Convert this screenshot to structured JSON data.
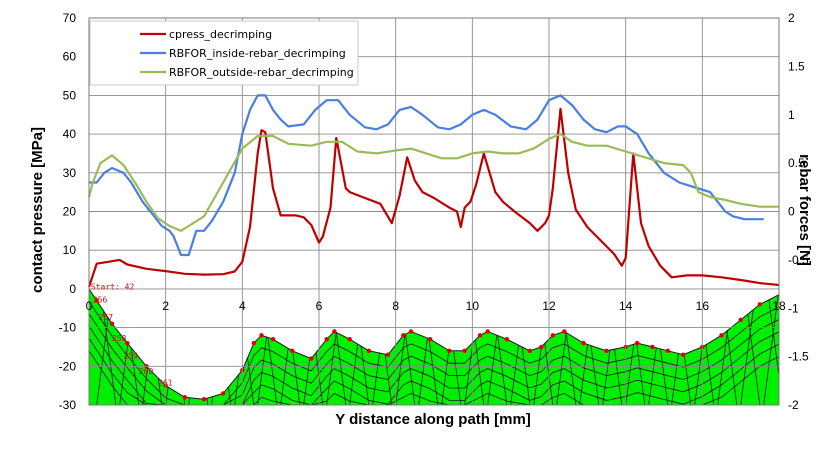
{
  "chart_data": {
    "type": "line",
    "xlabel": "Y distance along path [mm]",
    "ylabel": "contact pressure [MPa]",
    "y2label": "rebar forces [N]",
    "xlim": [
      0,
      18
    ],
    "ylim": [
      -30,
      70
    ],
    "y2lim": [
      -2,
      2
    ],
    "xticks": [
      "0",
      "2",
      "4",
      "6",
      "8",
      "10",
      "12",
      "14",
      "16",
      "18"
    ],
    "yticks": [
      "70",
      "60",
      "50",
      "40",
      "30",
      "20",
      "10",
      "0",
      "-10",
      "-20",
      "-30"
    ],
    "y2ticks": [
      "2",
      "1.5",
      "1",
      "0.5",
      "0",
      "-0.5",
      "-1",
      "-1.5",
      "-2"
    ],
    "grid": true,
    "legend_position": "top-left",
    "series": [
      {
        "name": "cpress_decrimping",
        "color": "#c00000",
        "axis": "left",
        "points": [
          [
            0,
            0.5
          ],
          [
            0.2,
            6.5
          ],
          [
            0.5,
            7.0
          ],
          [
            0.8,
            7.5
          ],
          [
            1.0,
            6.3
          ],
          [
            1.5,
            5.2
          ],
          [
            2.0,
            4.6
          ],
          [
            2.5,
            3.9
          ],
          [
            3.0,
            3.7
          ],
          [
            3.5,
            3.8
          ],
          [
            3.8,
            4.5
          ],
          [
            4.0,
            7.0
          ],
          [
            4.2,
            16
          ],
          [
            4.4,
            35
          ],
          [
            4.5,
            41
          ],
          [
            4.6,
            40.5
          ],
          [
            4.8,
            26
          ],
          [
            5.0,
            19
          ],
          [
            5.4,
            19
          ],
          [
            5.6,
            18.5
          ],
          [
            5.8,
            16.5
          ],
          [
            6.0,
            12
          ],
          [
            6.1,
            13.5
          ],
          [
            6.3,
            21
          ],
          [
            6.45,
            39
          ],
          [
            6.7,
            26
          ],
          [
            6.8,
            25
          ],
          [
            7.2,
            23.5
          ],
          [
            7.6,
            22
          ],
          [
            7.9,
            17
          ],
          [
            8.1,
            24
          ],
          [
            8.3,
            34
          ],
          [
            8.5,
            28
          ],
          [
            8.7,
            25
          ],
          [
            9.0,
            23.5
          ],
          [
            9.4,
            21
          ],
          [
            9.6,
            20
          ],
          [
            9.7,
            16
          ],
          [
            9.8,
            21
          ],
          [
            9.95,
            22.5
          ],
          [
            10.1,
            27
          ],
          [
            10.3,
            35
          ],
          [
            10.6,
            25
          ],
          [
            10.8,
            22.5
          ],
          [
            11.1,
            20
          ],
          [
            11.5,
            17
          ],
          [
            11.7,
            15
          ],
          [
            11.9,
            17
          ],
          [
            12.0,
            19
          ],
          [
            12.1,
            26
          ],
          [
            12.3,
            46.5
          ],
          [
            12.5,
            30
          ],
          [
            12.7,
            20.5
          ],
          [
            13.0,
            16
          ],
          [
            13.4,
            12
          ],
          [
            13.7,
            9
          ],
          [
            13.9,
            6
          ],
          [
            14.0,
            8
          ],
          [
            14.2,
            35
          ],
          [
            14.4,
            17
          ],
          [
            14.6,
            11
          ],
          [
            14.9,
            6
          ],
          [
            15.2,
            3
          ],
          [
            15.6,
            3.5
          ],
          [
            16.0,
            3.5
          ],
          [
            16.5,
            3.0
          ],
          [
            17.0,
            2.3
          ],
          [
            17.5,
            1.5
          ],
          [
            18.0,
            1.0
          ]
        ]
      },
      {
        "name": "RBFOR_inside-rebar_decrimping",
        "color": "#4a7ee0",
        "axis": "right",
        "points": [
          [
            0,
            0.3
          ],
          [
            0.2,
            0.3
          ],
          [
            0.4,
            0.4
          ],
          [
            0.6,
            0.45
          ],
          [
            0.9,
            0.4
          ],
          [
            1.1,
            0.3
          ],
          [
            1.4,
            0.1
          ],
          [
            1.7,
            -0.05
          ],
          [
            1.9,
            -0.15
          ],
          [
            2.1,
            -0.2
          ],
          [
            2.2,
            -0.25
          ],
          [
            2.3,
            -0.35
          ],
          [
            2.4,
            -0.45
          ],
          [
            2.6,
            -0.45
          ],
          [
            2.8,
            -0.2
          ],
          [
            3.0,
            -0.2
          ],
          [
            3.2,
            -0.1
          ],
          [
            3.5,
            0.1
          ],
          [
            3.8,
            0.4
          ],
          [
            4.0,
            0.8
          ],
          [
            4.2,
            1.05
          ],
          [
            4.4,
            1.2
          ],
          [
            4.6,
            1.2
          ],
          [
            4.8,
            1.05
          ],
          [
            5.0,
            0.95
          ],
          [
            5.2,
            0.88
          ],
          [
            5.6,
            0.9
          ],
          [
            5.9,
            1.05
          ],
          [
            6.2,
            1.15
          ],
          [
            6.5,
            1.15
          ],
          [
            6.8,
            1.0
          ],
          [
            7.2,
            0.87
          ],
          [
            7.5,
            0.85
          ],
          [
            7.8,
            0.9
          ],
          [
            8.1,
            1.05
          ],
          [
            8.4,
            1.08
          ],
          [
            8.7,
            1.0
          ],
          [
            9.1,
            0.87
          ],
          [
            9.4,
            0.85
          ],
          [
            9.7,
            0.9
          ],
          [
            10.0,
            1.0
          ],
          [
            10.3,
            1.05
          ],
          [
            10.6,
            1.0
          ],
          [
            11.0,
            0.88
          ],
          [
            11.4,
            0.85
          ],
          [
            11.7,
            0.95
          ],
          [
            12.0,
            1.15
          ],
          [
            12.3,
            1.2
          ],
          [
            12.6,
            1.1
          ],
          [
            12.9,
            0.95
          ],
          [
            13.2,
            0.85
          ],
          [
            13.5,
            0.82
          ],
          [
            13.8,
            0.88
          ],
          [
            14.0,
            0.88
          ],
          [
            14.3,
            0.8
          ],
          [
            14.6,
            0.6
          ],
          [
            15.0,
            0.4
          ],
          [
            15.4,
            0.3
          ],
          [
            15.8,
            0.25
          ],
          [
            16.2,
            0.2
          ],
          [
            16.4,
            0.1
          ],
          [
            16.6,
            0.0
          ],
          [
            16.8,
            -0.05
          ],
          [
            17.1,
            -0.08
          ],
          [
            17.5,
            -0.08
          ],
          [
            17.6,
            -0.08
          ]
        ]
      },
      {
        "name": "RBFOR_outside-rebar_decrimping",
        "color": "#9bbb59",
        "axis": "right",
        "points": [
          [
            0,
            0.15
          ],
          [
            0.1,
            0.3
          ],
          [
            0.3,
            0.5
          ],
          [
            0.6,
            0.58
          ],
          [
            0.9,
            0.48
          ],
          [
            1.2,
            0.3
          ],
          [
            1.5,
            0.1
          ],
          [
            1.8,
            -0.07
          ],
          [
            2.1,
            -0.15
          ],
          [
            2.4,
            -0.2
          ],
          [
            2.6,
            -0.15
          ],
          [
            3.0,
            -0.05
          ],
          [
            3.5,
            0.3
          ],
          [
            4.0,
            0.65
          ],
          [
            4.4,
            0.78
          ],
          [
            4.8,
            0.78
          ],
          [
            5.2,
            0.7
          ],
          [
            5.8,
            0.68
          ],
          [
            6.2,
            0.72
          ],
          [
            6.6,
            0.72
          ],
          [
            7.0,
            0.62
          ],
          [
            7.5,
            0.6
          ],
          [
            8.0,
            0.63
          ],
          [
            8.4,
            0.65
          ],
          [
            8.8,
            0.6
          ],
          [
            9.2,
            0.55
          ],
          [
            9.6,
            0.55
          ],
          [
            10.0,
            0.6
          ],
          [
            10.4,
            0.62
          ],
          [
            10.8,
            0.6
          ],
          [
            11.2,
            0.6
          ],
          [
            11.6,
            0.65
          ],
          [
            12.0,
            0.75
          ],
          [
            12.3,
            0.8
          ],
          [
            12.6,
            0.72
          ],
          [
            13.0,
            0.68
          ],
          [
            13.5,
            0.68
          ],
          [
            14.0,
            0.62
          ],
          [
            14.5,
            0.56
          ],
          [
            15.0,
            0.5
          ],
          [
            15.5,
            0.48
          ],
          [
            15.7,
            0.4
          ],
          [
            15.9,
            0.2
          ],
          [
            16.2,
            0.15
          ],
          [
            16.6,
            0.12
          ],
          [
            17.0,
            0.08
          ],
          [
            17.5,
            0.05
          ],
          [
            18.0,
            0.05
          ]
        ]
      }
    ],
    "mesh": {
      "fill_color": "#00ee00",
      "start_label": "Start: 42",
      "node_labels": [
        "256",
        "257",
        "258",
        "259",
        "260",
        "261"
      ]
    }
  }
}
